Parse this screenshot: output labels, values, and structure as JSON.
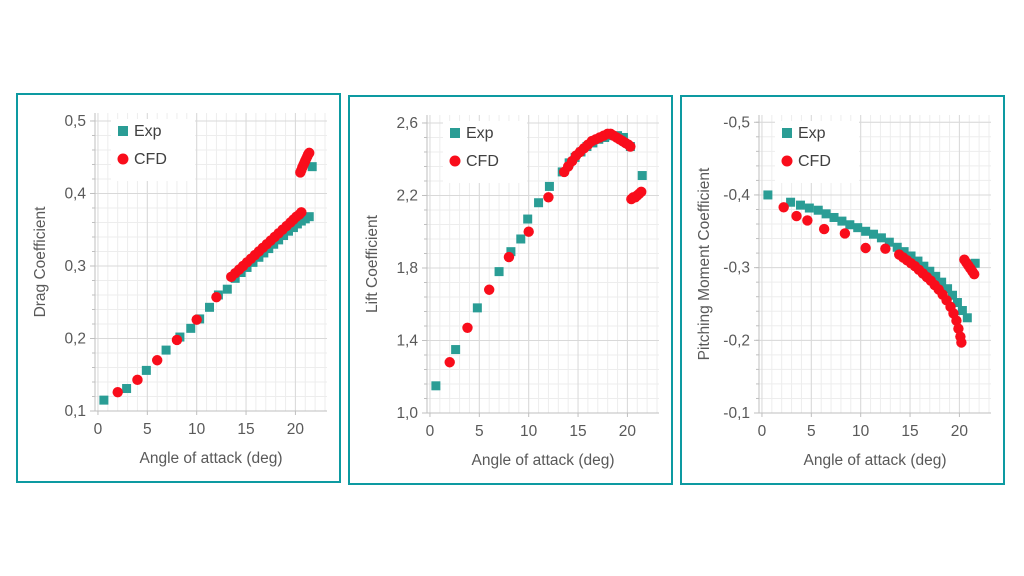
{
  "page": {
    "background": "#ffffff"
  },
  "styles": {
    "panel_border_color": "#0D9AA1",
    "text_color": "#595959",
    "axis_line_color": "#BFBFBF",
    "grid_major_color": "#D9D9D9",
    "grid_minor_color": "#EDEDED",
    "exp_color": "#2A9D95",
    "cfd_color": "#F90D1B",
    "legend_background": "#FFFFFF"
  },
  "legend": {
    "exp_label": "Exp",
    "cfd_label": "CFD"
  },
  "chart_data": [
    {
      "type": "scatter",
      "key": "drag",
      "ylabel": "Drag Coefficient",
      "xlabel": "Angle of attack (deg)",
      "x_tick_values": [
        0,
        5,
        10,
        15,
        20
      ],
      "x_tick_labels": [
        "0",
        "5",
        "10",
        "15",
        "20"
      ],
      "y_tick_values": [
        0.5,
        0.4,
        0.3,
        0.2,
        0.1
      ],
      "y_tick_labels": [
        "0,5",
        "0,4",
        "0,3",
        "0,2",
        "0,1"
      ],
      "xlim": [
        0,
        23
      ],
      "ylim": [
        0.1,
        0.5
      ],
      "x_minor_step": 1,
      "y_minor_step": 0.02,
      "grid": "on",
      "legend_position": "top-left-inside",
      "series": [
        {
          "name": "Exp",
          "marker": "square",
          "color": "#2A9D95",
          "points": [
            [
              0.6,
              0.115
            ],
            [
              2.9,
              0.131
            ],
            [
              4.9,
              0.156
            ],
            [
              6.9,
              0.184
            ],
            [
              8.3,
              0.202
            ],
            [
              9.4,
              0.214
            ],
            [
              10.3,
              0.227
            ],
            [
              11.3,
              0.243
            ],
            [
              12.2,
              0.26
            ],
            [
              13.1,
              0.268
            ],
            [
              13.9,
              0.283
            ],
            [
              14.5,
              0.291
            ],
            [
              15.1,
              0.298
            ],
            [
              15.7,
              0.305
            ],
            [
              16.3,
              0.312
            ],
            [
              16.8,
              0.318
            ],
            [
              17.3,
              0.324
            ],
            [
              17.8,
              0.33
            ],
            [
              18.3,
              0.336
            ],
            [
              18.8,
              0.342
            ],
            [
              19.3,
              0.348
            ],
            [
              19.8,
              0.353
            ],
            [
              20.2,
              0.358
            ],
            [
              20.6,
              0.362
            ],
            [
              21.0,
              0.365
            ],
            [
              21.4,
              0.368
            ],
            [
              21.7,
              0.437
            ]
          ]
        },
        {
          "name": "CFD",
          "marker": "circle",
          "color": "#F90D1B",
          "points": [
            [
              2.0,
              0.126
            ],
            [
              4.0,
              0.143
            ],
            [
              6.0,
              0.17
            ],
            [
              8.0,
              0.198
            ],
            [
              10.0,
              0.226
            ],
            [
              12.0,
              0.257
            ],
            [
              13.5,
              0.285
            ],
            [
              13.9,
              0.29
            ],
            [
              14.3,
              0.295
            ],
            [
              14.7,
              0.3
            ],
            [
              15.1,
              0.305
            ],
            [
              15.5,
              0.31
            ],
            [
              15.9,
              0.315
            ],
            [
              16.3,
              0.32
            ],
            [
              16.7,
              0.325
            ],
            [
              17.1,
              0.33
            ],
            [
              17.5,
              0.335
            ],
            [
              17.9,
              0.34
            ],
            [
              18.3,
              0.345
            ],
            [
              18.7,
              0.35
            ],
            [
              19.1,
              0.355
            ],
            [
              19.5,
              0.36
            ],
            [
              19.8,
              0.364
            ],
            [
              20.1,
              0.368
            ],
            [
              20.4,
              0.371
            ],
            [
              20.6,
              0.374
            ],
            [
              20.5,
              0.429
            ],
            [
              20.6,
              0.432
            ],
            [
              20.7,
              0.436
            ],
            [
              20.8,
              0.439
            ],
            [
              20.9,
              0.442
            ],
            [
              21.0,
              0.445
            ],
            [
              21.1,
              0.448
            ],
            [
              21.2,
              0.451
            ],
            [
              21.3,
              0.454
            ],
            [
              21.4,
              0.456
            ]
          ]
        }
      ]
    },
    {
      "type": "scatter",
      "key": "lift",
      "ylabel": "Lift Coefficient",
      "xlabel": "Angle of attack (deg)",
      "x_tick_values": [
        0,
        5,
        10,
        15,
        20
      ],
      "x_tick_labels": [
        "0",
        "5",
        "10",
        "15",
        "20"
      ],
      "y_tick_values": [
        2.6,
        2.2,
        1.8,
        1.4,
        1.0
      ],
      "y_tick_labels": [
        "2,6",
        "2,2",
        "1,8",
        "1,4",
        "1,0"
      ],
      "xlim": [
        0,
        23
      ],
      "ylim": [
        1.0,
        2.6
      ],
      "x_minor_step": 1,
      "y_minor_step": 0.08,
      "grid": "on",
      "legend_position": "top-left-inside",
      "series": [
        {
          "name": "Exp",
          "marker": "square",
          "color": "#2A9D95",
          "points": [
            [
              0.6,
              1.15
            ],
            [
              2.6,
              1.35
            ],
            [
              4.8,
              1.58
            ],
            [
              7.0,
              1.78
            ],
            [
              8.2,
              1.89
            ],
            [
              9.2,
              1.96
            ],
            [
              9.9,
              2.07
            ],
            [
              11.0,
              2.16
            ],
            [
              12.1,
              2.25
            ],
            [
              13.4,
              2.33
            ],
            [
              14.1,
              2.38
            ],
            [
              14.7,
              2.41
            ],
            [
              15.3,
              2.44
            ],
            [
              15.9,
              2.47
            ],
            [
              16.5,
              2.49
            ],
            [
              17.1,
              2.51
            ],
            [
              17.7,
              2.52
            ],
            [
              18.4,
              2.53
            ],
            [
              19.0,
              2.53
            ],
            [
              19.6,
              2.52
            ],
            [
              20.3,
              2.47
            ],
            [
              21.5,
              2.31
            ]
          ]
        },
        {
          "name": "CFD",
          "marker": "circle",
          "color": "#F90D1B",
          "points": [
            [
              2.0,
              1.28
            ],
            [
              3.8,
              1.47
            ],
            [
              6.0,
              1.68
            ],
            [
              8.0,
              1.86
            ],
            [
              10.0,
              2.0
            ],
            [
              12.0,
              2.19
            ],
            [
              13.6,
              2.33
            ],
            [
              14.0,
              2.36
            ],
            [
              14.4,
              2.39
            ],
            [
              14.8,
              2.42
            ],
            [
              15.2,
              2.44
            ],
            [
              15.6,
              2.46
            ],
            [
              16.0,
              2.48
            ],
            [
              16.4,
              2.5
            ],
            [
              16.8,
              2.51
            ],
            [
              17.2,
              2.52
            ],
            [
              17.6,
              2.53
            ],
            [
              18.0,
              2.54
            ],
            [
              18.3,
              2.54
            ],
            [
              18.6,
              2.53
            ],
            [
              18.9,
              2.52
            ],
            [
              19.2,
              2.51
            ],
            [
              19.5,
              2.5
            ],
            [
              19.8,
              2.49
            ],
            [
              20.1,
              2.48
            ],
            [
              20.3,
              2.47
            ],
            [
              20.4,
              2.18
            ],
            [
              20.6,
              2.19
            ],
            [
              20.8,
              2.19
            ],
            [
              21.0,
              2.2
            ],
            [
              21.2,
              2.21
            ],
            [
              21.4,
              2.22
            ]
          ]
        }
      ]
    },
    {
      "type": "scatter",
      "key": "moment",
      "ylabel": "Pitching Moment Coefficient",
      "xlabel": "Angle of attack (deg)",
      "x_tick_values": [
        0,
        5,
        10,
        15,
        20
      ],
      "x_tick_labels": [
        "0",
        "5",
        "10",
        "15",
        "20"
      ],
      "y_tick_values": [
        -0.5,
        -0.4,
        -0.3,
        -0.2,
        -0.1
      ],
      "y_tick_labels": [
        "-0,5",
        "-0,4",
        "-0,3",
        "-0,2",
        "-0,1"
      ],
      "xlim": [
        0,
        23
      ],
      "ylim": [
        -0.5,
        -0.1
      ],
      "y_axis_inverted": true,
      "x_minor_step": 1,
      "y_minor_step": 0.02,
      "grid": "on",
      "legend_position": "top-left-inside",
      "series": [
        {
          "name": "Exp",
          "marker": "square",
          "color": "#2A9D95",
          "points": [
            [
              0.6,
              -0.4
            ],
            [
              2.9,
              -0.39
            ],
            [
              3.9,
              -0.386
            ],
            [
              4.8,
              -0.382
            ],
            [
              5.7,
              -0.379
            ],
            [
              6.5,
              -0.374
            ],
            [
              7.3,
              -0.369
            ],
            [
              8.1,
              -0.364
            ],
            [
              8.9,
              -0.359
            ],
            [
              9.7,
              -0.355
            ],
            [
              10.5,
              -0.35
            ],
            [
              11.3,
              -0.346
            ],
            [
              12.1,
              -0.341
            ],
            [
              12.9,
              -0.335
            ],
            [
              13.7,
              -0.328
            ],
            [
              14.4,
              -0.322
            ],
            [
              15.1,
              -0.316
            ],
            [
              15.8,
              -0.309
            ],
            [
              16.4,
              -0.302
            ],
            [
              17.0,
              -0.295
            ],
            [
              17.6,
              -0.288
            ],
            [
              18.2,
              -0.28
            ],
            [
              18.8,
              -0.271
            ],
            [
              19.3,
              -0.262
            ],
            [
              19.8,
              -0.252
            ],
            [
              20.3,
              -0.241
            ],
            [
              20.8,
              -0.231
            ],
            [
              21.6,
              -0.306
            ]
          ]
        },
        {
          "name": "CFD",
          "marker": "circle",
          "color": "#F90D1B",
          "points": [
            [
              2.2,
              -0.383
            ],
            [
              3.5,
              -0.371
            ],
            [
              4.6,
              -0.365
            ],
            [
              6.3,
              -0.353
            ],
            [
              8.4,
              -0.347
            ],
            [
              10.5,
              -0.327
            ],
            [
              12.5,
              -0.326
            ],
            [
              13.9,
              -0.318
            ],
            [
              14.3,
              -0.314
            ],
            [
              14.7,
              -0.31
            ],
            [
              15.1,
              -0.306
            ],
            [
              15.5,
              -0.302
            ],
            [
              15.9,
              -0.297
            ],
            [
              16.3,
              -0.292
            ],
            [
              16.7,
              -0.287
            ],
            [
              17.1,
              -0.282
            ],
            [
              17.5,
              -0.276
            ],
            [
              17.9,
              -0.27
            ],
            [
              18.3,
              -0.263
            ],
            [
              18.7,
              -0.255
            ],
            [
              19.1,
              -0.246
            ],
            [
              19.4,
              -0.237
            ],
            [
              19.7,
              -0.227
            ],
            [
              19.9,
              -0.216
            ],
            [
              20.1,
              -0.205
            ],
            [
              20.2,
              -0.197
            ],
            [
              20.5,
              -0.311
            ],
            [
              20.7,
              -0.307
            ],
            [
              20.9,
              -0.303
            ],
            [
              21.1,
              -0.299
            ],
            [
              21.3,
              -0.295
            ],
            [
              21.5,
              -0.291
            ]
          ]
        }
      ]
    }
  ]
}
